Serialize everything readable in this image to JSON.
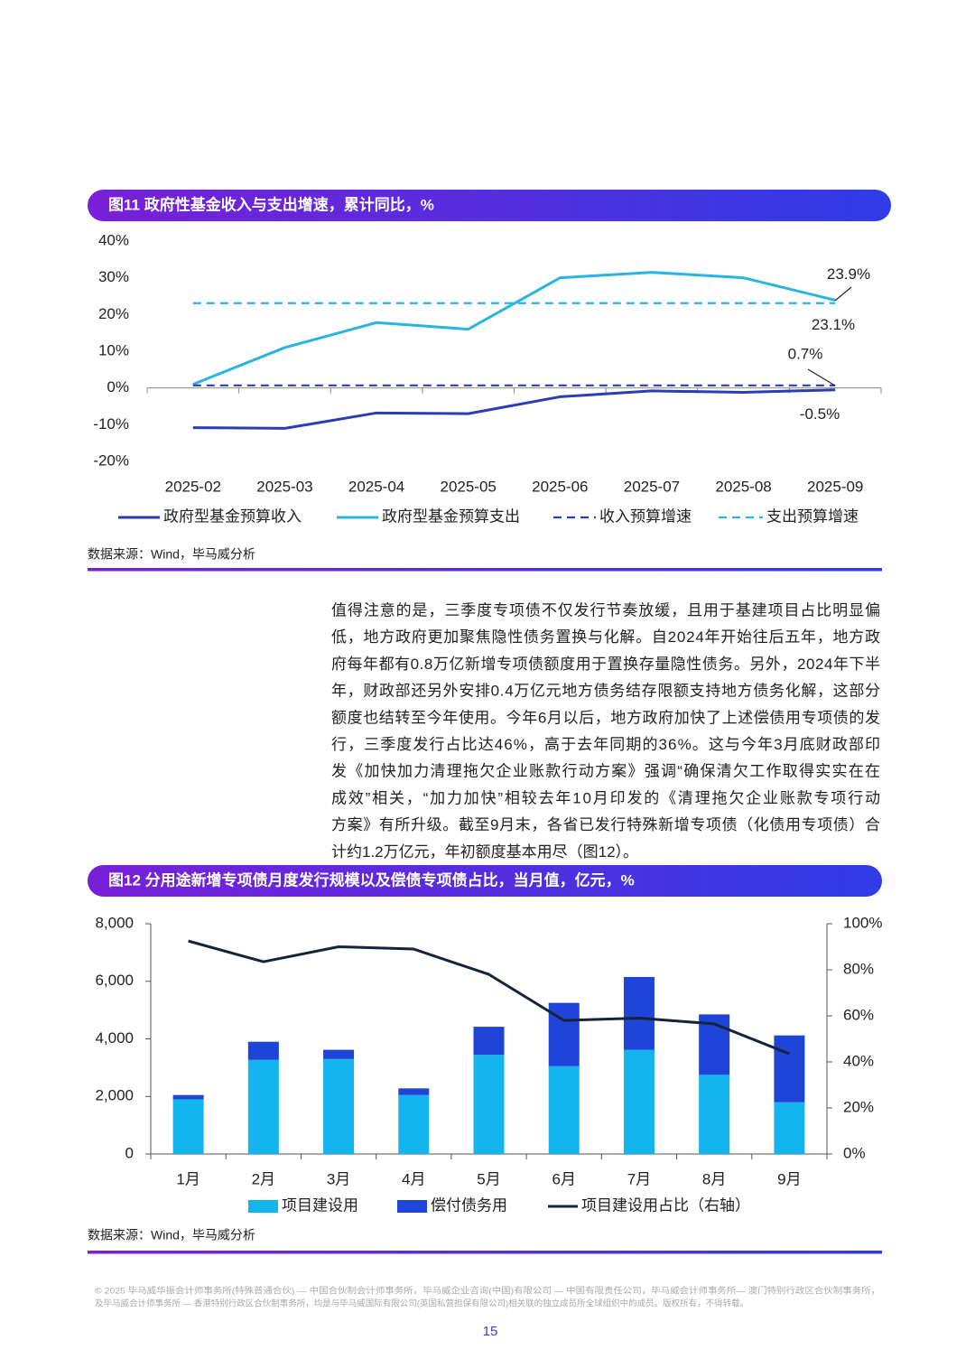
{
  "chart_data": [
    {
      "type": "line",
      "title": "图11 政府性基金收入与支出增速，累计同比，%",
      "categories": [
        "2025-02",
        "2025-03",
        "2025-04",
        "2025-05",
        "2025-06",
        "2025-07",
        "2025-08",
        "2025-09"
      ],
      "series": [
        {
          "name": "政府型基金预算收入",
          "color": "#2b3db5",
          "dashed": false,
          "values": [
            -10.8,
            -11,
            -6.8,
            -7,
            -2.4,
            -0.8,
            -1.2,
            -0.5
          ],
          "value_labels": [
            null,
            null,
            null,
            null,
            null,
            null,
            null,
            "-0.5%"
          ]
        },
        {
          "name": "政府型基金预算支出",
          "color": "#2ab4e2",
          "dashed": false,
          "values": [
            1,
            11,
            17.8,
            16,
            30,
            31.5,
            30,
            23.9
          ],
          "value_labels": [
            null,
            null,
            null,
            null,
            null,
            null,
            null,
            "23.9%"
          ]
        },
        {
          "name": "收入预算增速",
          "color": "#2b3db5",
          "dashed": true,
          "values": [
            0.7,
            0.7,
            0.7,
            0.7,
            0.7,
            0.7,
            0.7,
            0.7
          ],
          "value_labels": [
            null,
            null,
            null,
            null,
            null,
            null,
            null,
            "0.7%"
          ]
        },
        {
          "name": "支出预算增速",
          "color": "#2ab4e2",
          "dashed": true,
          "values": [
            23.1,
            23.1,
            23.1,
            23.1,
            23.1,
            23.1,
            23.1,
            23.1
          ],
          "value_labels": [
            null,
            null,
            null,
            null,
            null,
            null,
            null,
            "23.1%"
          ]
        }
      ],
      "ylim": [
        -20,
        40
      ],
      "yticks": [
        {
          "value": 40,
          "label": "40%"
        },
        {
          "value": 30,
          "label": "30%"
        },
        {
          "value": 20,
          "label": "20%"
        },
        {
          "value": 10,
          "label": "10%"
        },
        {
          "value": 0,
          "label": "0%"
        },
        {
          "value": -10,
          "label": "-10%"
        },
        {
          "value": -20,
          "label": "-20%"
        }
      ],
      "source": "数据来源：Wind，毕马威分析"
    },
    {
      "type": "bar",
      "stacked": true,
      "title": "图12 分用途新增专项债月度发行规模以及偿债专项债占比，当月值，亿元，%",
      "categories": [
        "1月",
        "2月",
        "3月",
        "4月",
        "5月",
        "6月",
        "7月",
        "8月",
        "9月"
      ],
      "series": [
        {
          "name": "项目建设用",
          "type": "bar",
          "color": "#14b4ee",
          "values": [
            1900,
            3270,
            3300,
            2050,
            3450,
            3050,
            3620,
            2750,
            1800
          ]
        },
        {
          "name": "偿付债务用",
          "type": "bar",
          "color": "#1f44d8",
          "values": [
            150,
            630,
            320,
            230,
            970,
            2200,
            2530,
            2100,
            2320
          ]
        },
        {
          "name": "项目建设用占比（右轴）",
          "type": "line",
          "axis": "y2",
          "color": "#16243a",
          "values": [
            92.5,
            83.5,
            90,
            89,
            78,
            58,
            59,
            56.5,
            43.5
          ]
        }
      ],
      "ylim": [
        0,
        8000
      ],
      "yticks": [
        0,
        {
          "value": 2000,
          "label": "2,000"
        },
        {
          "value": 4000,
          "label": "4,000"
        },
        {
          "value": 6000,
          "label": "6,000"
        },
        {
          "value": 8000,
          "label": "8,000"
        }
      ],
      "y2lim": [
        0,
        100
      ],
      "y2ticks": [
        {
          "value": 0,
          "label": "0%"
        },
        {
          "value": 20,
          "label": "20%"
        },
        {
          "value": 40,
          "label": "40%"
        },
        {
          "value": 60,
          "label": "60%"
        },
        {
          "value": 80,
          "label": "80%"
        },
        {
          "value": 100,
          "label": "100%"
        }
      ],
      "source": "数据来源：Wind，毕马威分析"
    }
  ],
  "paragraph": [
    "值得注意的是，三季度专项债不仅发行节奏放缓，且用于基建项目占比明显偏",
    "低，地方政府更加聚焦隐性债务置换与化解。自2024年开始往后五年，地方政",
    "府每年都有0.8万亿新增专项债额度用于置换存量隐性债务。另外，2024年下半",
    "年，财政部还另外安排0.4万亿元地方债务结存限额支持地方债务化解，这部分",
    "额度也结转至今年使用。今年6月以后，地方政府加快了上述偿债用专项债的发",
    "行，三季度发行占比达46%，高于去年同期的36%。这与今年3月底财政部印",
    "发《加快加力清理拖欠企业账款行动方案》强调“确保清欠工作取得实实在在",
    "成效”相关，“加力加快”相较去年10月印发的《清理拖欠企业账款专项行动",
    "方案》有所升级。截至9月末，各省已发行特殊新增专项债（化债用专项债）合",
    "计约1.2万亿元，年初额度基本用尽（图12）。"
  ],
  "footer": [
    "© 2025 毕马威华振会计师事务所(特殊普通合伙) — 中国合伙制会计师事务所，毕马威企业咨询(中国)有限公司 — 中国有限责任公司，毕马威会计师事务所— 澳门特别行政区合伙制事务所，",
    "及毕马威会计师事务所 — 香港特别行政区合伙制事务所，均是与毕马威国际有限公司(英国私营担保有限公司)相关联的独立成员所全球组织中的成员。版权所有，不得转载。"
  ],
  "page_number": "15"
}
